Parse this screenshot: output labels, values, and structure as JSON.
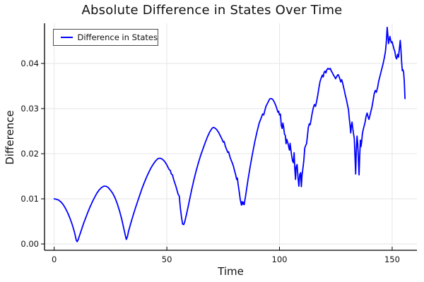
{
  "page": {
    "background": "#ffffff"
  },
  "chart_data": {
    "type": "line",
    "title": "Absolute Difference in States Over Time",
    "xlabel": "Time",
    "ylabel": "Difference",
    "grid": true,
    "grid_color": "#e6e6e6",
    "axis_color": "#000000",
    "line_color": "#0000ff",
    "xlim": [
      -4.3,
      161.0
    ],
    "ylim": [
      -0.0014,
      0.0489
    ],
    "xticks": [
      0,
      50,
      100,
      150
    ],
    "xtick_labels": [
      "0",
      "50",
      "100",
      "150"
    ],
    "yticks": [
      0.0,
      0.01,
      0.02,
      0.03,
      0.04
    ],
    "ytick_labels": [
      "0.00",
      "0.01",
      "0.02",
      "0.03",
      "0.04"
    ],
    "legend": {
      "position": "top-left",
      "entries": [
        {
          "label": "Difference in States",
          "color": "#0000ff"
        }
      ]
    },
    "series": [
      {
        "name": "Difference in States",
        "color": "#0000ff",
        "points": [
          [
            0,
            0.01
          ],
          [
            1,
            0.0099
          ],
          [
            2,
            0.0097
          ],
          [
            3,
            0.0093
          ],
          [
            4,
            0.0087
          ],
          [
            5,
            0.0079
          ],
          [
            6,
            0.0069
          ],
          [
            7,
            0.0057
          ],
          [
            8,
            0.0043
          ],
          [
            9,
            0.0026
          ],
          [
            9.8,
            0.0008
          ],
          [
            10.2,
            0.0005
          ],
          [
            10.7,
            0.001
          ],
          [
            11,
            0.0015
          ],
          [
            12,
            0.003
          ],
          [
            13,
            0.0045
          ],
          [
            14,
            0.0058
          ],
          [
            15,
            0.0071
          ],
          [
            16,
            0.0083
          ],
          [
            17,
            0.0094
          ],
          [
            18,
            0.0104
          ],
          [
            19,
            0.0113
          ],
          [
            20,
            0.012
          ],
          [
            21,
            0.0125
          ],
          [
            22,
            0.0128
          ],
          [
            23,
            0.0128
          ],
          [
            24,
            0.0125
          ],
          [
            25,
            0.0119
          ],
          [
            26,
            0.0112
          ],
          [
            27,
            0.0102
          ],
          [
            28,
            0.0089
          ],
          [
            29,
            0.0073
          ],
          [
            30,
            0.0054
          ],
          [
            31,
            0.0032
          ],
          [
            31.6,
            0.0018
          ],
          [
            32,
            0.001
          ],
          [
            32.5,
            0.0016
          ],
          [
            33,
            0.0028
          ],
          [
            34,
            0.0046
          ],
          [
            35,
            0.0063
          ],
          [
            36,
            0.0079
          ],
          [
            37,
            0.0094
          ],
          [
            38,
            0.0109
          ],
          [
            39,
            0.0123
          ],
          [
            40,
            0.0136
          ],
          [
            41,
            0.0148
          ],
          [
            42,
            0.0159
          ],
          [
            43,
            0.0169
          ],
          [
            44,
            0.0177
          ],
          [
            45,
            0.0184
          ],
          [
            46,
            0.0189
          ],
          [
            47,
            0.019
          ],
          [
            48,
            0.0188
          ],
          [
            49,
            0.0183
          ],
          [
            50,
            0.0175
          ],
          [
            51,
            0.0165
          ],
          [
            51.5,
            0.0163
          ],
          [
            52,
            0.0155
          ],
          [
            52.5,
            0.0153
          ],
          [
            53,
            0.0143
          ],
          [
            54,
            0.0128
          ],
          [
            55,
            0.011
          ],
          [
            55.5,
            0.0106
          ],
          [
            56,
            0.008
          ],
          [
            56.5,
            0.006
          ],
          [
            57,
            0.0044
          ],
          [
            57.5,
            0.0043
          ],
          [
            58,
            0.005
          ],
          [
            59,
            0.0072
          ],
          [
            60,
            0.0096
          ],
          [
            61,
            0.012
          ],
          [
            62,
            0.0142
          ],
          [
            63,
            0.0162
          ],
          [
            64,
            0.018
          ],
          [
            65,
            0.0196
          ],
          [
            66,
            0.021
          ],
          [
            67,
            0.0224
          ],
          [
            68,
            0.0237
          ],
          [
            69,
            0.0248
          ],
          [
            70,
            0.0256
          ],
          [
            70.5,
            0.0258
          ],
          [
            71,
            0.0258
          ],
          [
            72,
            0.0254
          ],
          [
            73,
            0.0247
          ],
          [
            74,
            0.0237
          ],
          [
            74.5,
            0.0232
          ],
          [
            75,
            0.0226
          ],
          [
            75.4,
            0.0227
          ],
          [
            76,
            0.0216
          ],
          [
            76.4,
            0.0211
          ],
          [
            77,
            0.0203
          ],
          [
            77.4,
            0.0204
          ],
          [
            78,
            0.0193
          ],
          [
            78.5,
            0.0186
          ],
          [
            79,
            0.018
          ],
          [
            79.5,
            0.0173
          ],
          [
            80,
            0.0163
          ],
          [
            80.5,
            0.0154
          ],
          [
            81,
            0.0143
          ],
          [
            81.3,
            0.0146
          ],
          [
            81.6,
            0.0133
          ],
          [
            82,
            0.012
          ],
          [
            82.3,
            0.0109
          ],
          [
            82.6,
            0.0098
          ],
          [
            82.9,
            0.0091
          ],
          [
            83.1,
            0.0086
          ],
          [
            83.4,
            0.0094
          ],
          [
            83.7,
            0.0088
          ],
          [
            84,
            0.0092
          ],
          [
            84.3,
            0.0087
          ],
          [
            84.6,
            0.0096
          ],
          [
            85,
            0.0108
          ],
          [
            85.5,
            0.0125
          ],
          [
            86,
            0.0142
          ],
          [
            87,
            0.0172
          ],
          [
            88,
            0.02
          ],
          [
            89,
            0.0226
          ],
          [
            90,
            0.0248
          ],
          [
            91,
            0.0268
          ],
          [
            92,
            0.0281
          ],
          [
            92.5,
            0.0288
          ],
          [
            93,
            0.0286
          ],
          [
            93.5,
            0.0296
          ],
          [
            94,
            0.0305
          ],
          [
            95,
            0.0315
          ],
          [
            95.6,
            0.0321
          ],
          [
            96,
            0.0322
          ],
          [
            96.5,
            0.0322
          ],
          [
            97,
            0.032
          ],
          [
            97.5,
            0.0316
          ],
          [
            98,
            0.0311
          ],
          [
            98.5,
            0.0305
          ],
          [
            99,
            0.0297
          ],
          [
            99.3,
            0.0292
          ],
          [
            99.6,
            0.0294
          ],
          [
            100,
            0.0286
          ],
          [
            100.4,
            0.0288
          ],
          [
            100.8,
            0.0262
          ],
          [
            101.2,
            0.0256
          ],
          [
            101.5,
            0.0268
          ],
          [
            101.8,
            0.026
          ],
          [
            102.2,
            0.0244
          ],
          [
            102.6,
            0.024
          ],
          [
            102.9,
            0.0222
          ],
          [
            103.2,
            0.0232
          ],
          [
            103.6,
            0.0226
          ],
          [
            104,
            0.0217
          ],
          [
            104.4,
            0.0208
          ],
          [
            104.7,
            0.0223
          ],
          [
            105,
            0.021
          ],
          [
            105.4,
            0.0196
          ],
          [
            105.8,
            0.0184
          ],
          [
            106.2,
            0.018
          ],
          [
            106.5,
            0.0202
          ],
          [
            106.8,
            0.0166
          ],
          [
            107.1,
            0.0143
          ],
          [
            107.4,
            0.0171
          ],
          [
            107.8,
            0.0176
          ],
          [
            108.2,
            0.0148
          ],
          [
            108.6,
            0.0128
          ],
          [
            109,
            0.0154
          ],
          [
            109.4,
            0.0158
          ],
          [
            109.7,
            0.0127
          ],
          [
            110,
            0.0152
          ],
          [
            110.4,
            0.0168
          ],
          [
            110.8,
            0.0186
          ],
          [
            111.2,
            0.0212
          ],
          [
            111.6,
            0.0218
          ],
          [
            112,
            0.0222
          ],
          [
            112.4,
            0.024
          ],
          [
            112.8,
            0.0258
          ],
          [
            113.2,
            0.0266
          ],
          [
            113.6,
            0.0264
          ],
          [
            114,
            0.0275
          ],
          [
            114.5,
            0.029
          ],
          [
            115,
            0.0301
          ],
          [
            115.5,
            0.0309
          ],
          [
            116,
            0.0305
          ],
          [
            116.5,
            0.0316
          ],
          [
            117,
            0.033
          ],
          [
            117.5,
            0.0346
          ],
          [
            118,
            0.036
          ],
          [
            118.6,
            0.0369
          ],
          [
            119,
            0.0374
          ],
          [
            119.4,
            0.037
          ],
          [
            119.8,
            0.038
          ],
          [
            120.2,
            0.0383
          ],
          [
            120.6,
            0.0379
          ],
          [
            121,
            0.0386
          ],
          [
            121.5,
            0.0389
          ],
          [
            122,
            0.0387
          ],
          [
            122.5,
            0.0389
          ],
          [
            123,
            0.0383
          ],
          [
            123.5,
            0.0379
          ],
          [
            124,
            0.0374
          ],
          [
            124.5,
            0.037
          ],
          [
            124.9,
            0.0366
          ],
          [
            125.3,
            0.037
          ],
          [
            125.7,
            0.0374
          ],
          [
            126.1,
            0.0375
          ],
          [
            126.5,
            0.037
          ],
          [
            126.9,
            0.0364
          ],
          [
            127.2,
            0.0359
          ],
          [
            127.6,
            0.0364
          ],
          [
            128,
            0.0357
          ],
          [
            128.4,
            0.0348
          ],
          [
            128.8,
            0.034
          ],
          [
            129.2,
            0.033
          ],
          [
            129.6,
            0.0322
          ],
          [
            130,
            0.0312
          ],
          [
            130.6,
            0.0298
          ],
          [
            131,
            0.0276
          ],
          [
            131.3,
            0.0264
          ],
          [
            131.6,
            0.0246
          ],
          [
            131.9,
            0.0262
          ],
          [
            132.2,
            0.027
          ],
          [
            132.5,
            0.0258
          ],
          [
            132.8,
            0.0246
          ],
          [
            133.2,
            0.0233
          ],
          [
            133.5,
            0.0196
          ],
          [
            133.8,
            0.0155
          ],
          [
            134.1,
            0.0208
          ],
          [
            134.4,
            0.0239
          ],
          [
            134.7,
            0.0222
          ],
          [
            135,
            0.019
          ],
          [
            135.3,
            0.0153
          ],
          [
            135.6,
            0.0194
          ],
          [
            135.9,
            0.023
          ],
          [
            136.2,
            0.0216
          ],
          [
            136.5,
            0.0228
          ],
          [
            136.8,
            0.0244
          ],
          [
            137.2,
            0.0254
          ],
          [
            137.6,
            0.0262
          ],
          [
            138,
            0.027
          ],
          [
            138.4,
            0.0282
          ],
          [
            138.9,
            0.029
          ],
          [
            139.3,
            0.0282
          ],
          [
            139.7,
            0.0276
          ],
          [
            140.1,
            0.0284
          ],
          [
            140.5,
            0.0292
          ],
          [
            141,
            0.0302
          ],
          [
            141.5,
            0.0316
          ],
          [
            142,
            0.0332
          ],
          [
            142.5,
            0.034
          ],
          [
            143,
            0.0336
          ],
          [
            143.6,
            0.0348
          ],
          [
            144,
            0.036
          ],
          [
            144.5,
            0.037
          ],
          [
            145,
            0.038
          ],
          [
            145.5,
            0.039
          ],
          [
            146,
            0.04
          ],
          [
            146.5,
            0.0412
          ],
          [
            147,
            0.0426
          ],
          [
            147.4,
            0.0446
          ],
          [
            147.8,
            0.048
          ],
          [
            148.1,
            0.0462
          ],
          [
            148.4,
            0.0444
          ],
          [
            148.7,
            0.0452
          ],
          [
            149,
            0.046
          ],
          [
            149.3,
            0.0452
          ],
          [
            149.6,
            0.0446
          ],
          [
            150,
            0.0448
          ],
          [
            150.4,
            0.044
          ],
          [
            150.8,
            0.0432
          ],
          [
            151.2,
            0.0426
          ],
          [
            151.6,
            0.0414
          ],
          [
            152,
            0.041
          ],
          [
            152.4,
            0.042
          ],
          [
            152.8,
            0.0414
          ],
          [
            153.2,
            0.0432
          ],
          [
            153.6,
            0.0451
          ],
          [
            153.9,
            0.043
          ],
          [
            154.2,
            0.0404
          ],
          [
            154.5,
            0.0384
          ],
          [
            154.8,
            0.0386
          ],
          [
            155.1,
            0.038
          ],
          [
            155.4,
            0.036
          ],
          [
            155.7,
            0.0322
          ]
        ]
      }
    ]
  }
}
